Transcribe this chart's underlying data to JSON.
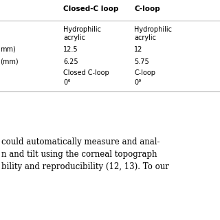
{
  "col_headers": [
    "Closed-C loop",
    "C-loop"
  ],
  "row_labels": [
    "",
    "mm)",
    "(mm)",
    "",
    ""
  ],
  "rows": [
    [
      "Hydrophilic\nacrylic",
      "Hydrophilic\nacrylic"
    ],
    [
      "12.5",
      "12"
    ],
    [
      "6.25",
      "5.75"
    ],
    [
      "Closed C-loop",
      "C-loop"
    ],
    [
      "0°",
      "0°"
    ]
  ],
  "footer_lines": [
    "could automatically measure and anal-",
    "n and tilt using the corneal topograph",
    "bility and reproducibility (12, 13). To our"
  ],
  "bg_color": "#ffffff",
  "text_color": "#000000",
  "line_color": "#bbbbbb",
  "header_font_size": 7.5,
  "body_font_size": 7.0,
  "footer_font_size": 8.5,
  "header_bold": true
}
